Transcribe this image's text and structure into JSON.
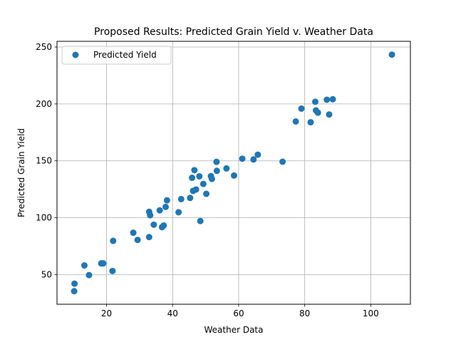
{
  "chart_data": {
    "type": "scatter",
    "title": "Proposed Results: Predicted Grain Yield v. Weather Data",
    "xlabel": "Weather Data",
    "ylabel": "Predicted Grain Yield",
    "xlim": [
      5,
      112
    ],
    "ylim": [
      24,
      255
    ],
    "xticks": [
      20,
      40,
      60,
      80,
      100
    ],
    "yticks": [
      50,
      100,
      150,
      200,
      250
    ],
    "grid": true,
    "legend_position": "top-left",
    "series": [
      {
        "name": "Predicted Yield",
        "color": "#1f77b4",
        "points": [
          [
            10.2,
            35.5
          ],
          [
            10.3,
            42.1
          ],
          [
            13.3,
            58.1
          ],
          [
            14.7,
            49.6
          ],
          [
            18.4,
            59.9
          ],
          [
            19.0,
            59.9
          ],
          [
            21.8,
            53.2
          ],
          [
            22.0,
            79.7
          ],
          [
            28.1,
            86.8
          ],
          [
            29.4,
            80.5
          ],
          [
            32.9,
            83.0
          ],
          [
            32.9,
            105.2
          ],
          [
            33.2,
            102.2
          ],
          [
            34.3,
            93.9
          ],
          [
            36.1,
            106.5
          ],
          [
            36.8,
            91.7
          ],
          [
            37.3,
            93.2
          ],
          [
            37.9,
            109.5
          ],
          [
            38.3,
            115.3
          ],
          [
            41.8,
            104.8
          ],
          [
            42.6,
            116.4
          ],
          [
            45.3,
            117.4
          ],
          [
            45.9,
            135.1
          ],
          [
            46.2,
            123.6
          ],
          [
            46.6,
            141.8
          ],
          [
            47.1,
            124.8
          ],
          [
            48.1,
            136.4
          ],
          [
            48.4,
            97.1
          ],
          [
            49.3,
            129.7
          ],
          [
            50.2,
            121.0
          ],
          [
            51.6,
            136.6
          ],
          [
            51.9,
            134.1
          ],
          [
            53.3,
            149.1
          ],
          [
            53.4,
            141.2
          ],
          [
            56.3,
            143.3
          ],
          [
            58.6,
            137.1
          ],
          [
            61.1,
            151.9
          ],
          [
            64.5,
            151.2
          ],
          [
            65.8,
            155.4
          ],
          [
            73.3,
            149.2
          ],
          [
            77.3,
            184.6
          ],
          [
            79.0,
            195.9
          ],
          [
            81.8,
            183.9
          ],
          [
            83.2,
            201.9
          ],
          [
            83.4,
            194.3
          ],
          [
            84.0,
            192.3
          ],
          [
            86.7,
            203.7
          ],
          [
            87.4,
            190.7
          ],
          [
            88.5,
            204.1
          ],
          [
            106.4,
            243.3
          ]
        ]
      }
    ]
  }
}
